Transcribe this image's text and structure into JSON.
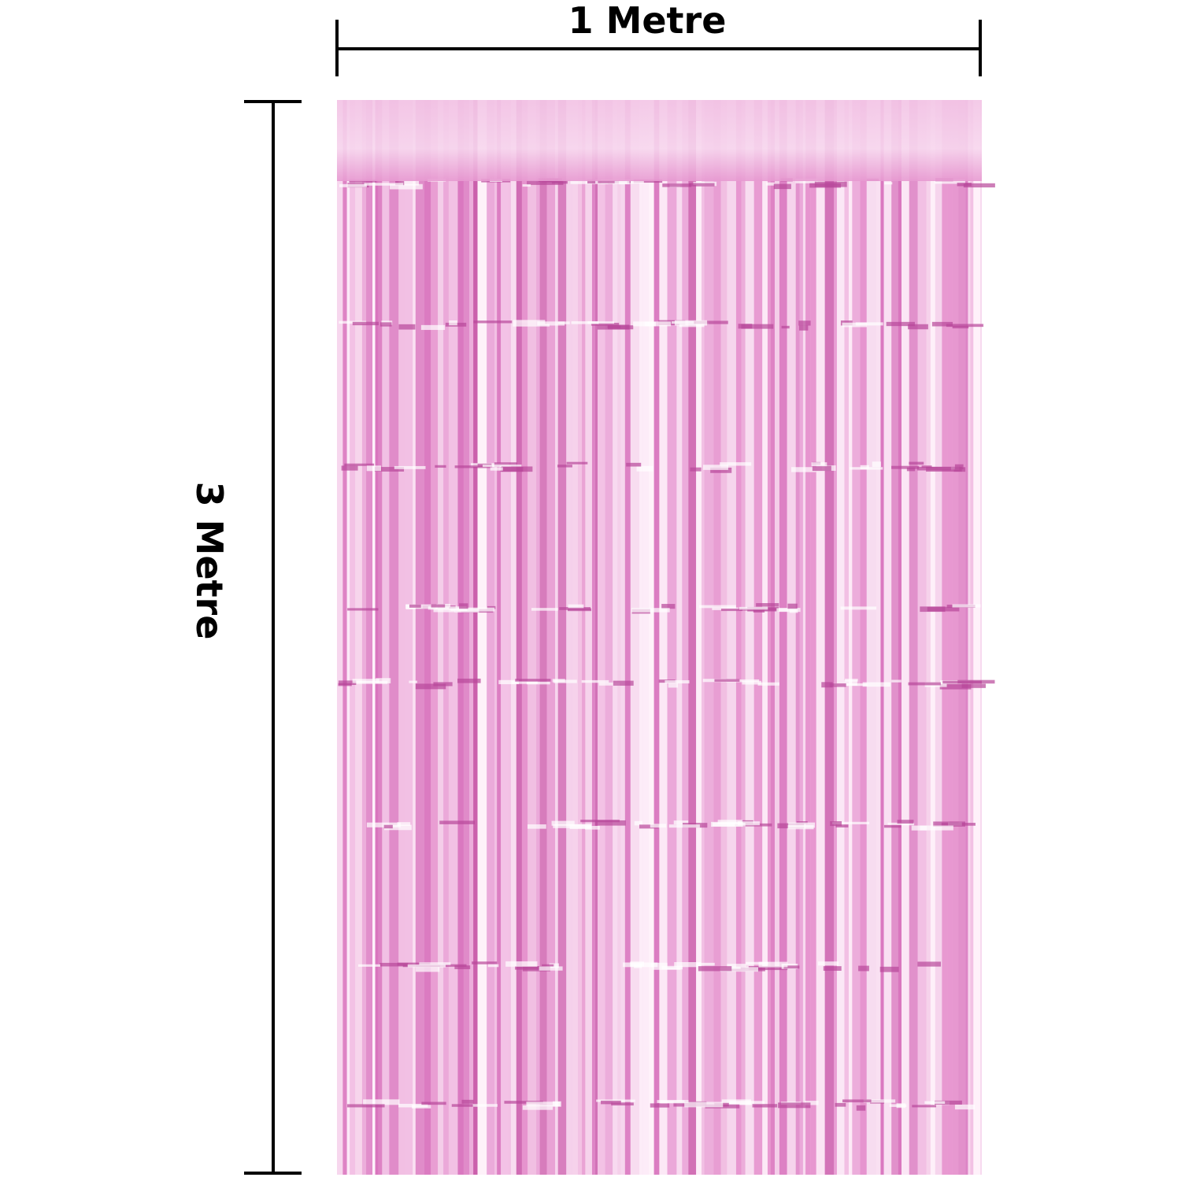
{
  "width_label": "1 Metre",
  "height_label": "3 Metre"
}
